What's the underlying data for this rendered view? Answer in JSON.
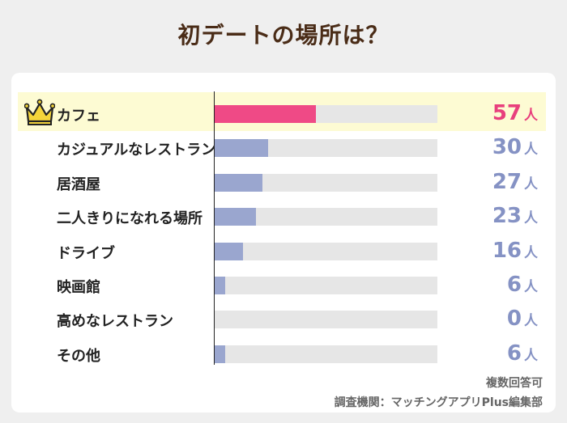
{
  "title": "初デートの場所は？",
  "unit": "人",
  "note_multiple": "複数回答可",
  "note_source": "調査機関：マッチングアプリPlus編集部",
  "crown_icon": "crown-icon",
  "colors": {
    "highlight_bar": "#ef4a86",
    "bar": "#9aa6cf",
    "highlight_value": "#e8407d",
    "value": "#8592c4",
    "track": "#e6e6e6",
    "highlight_row": "#fdfbd3"
  },
  "chart_data": {
    "type": "bar",
    "orientation": "horizontal",
    "title": "初デートの場所は？",
    "categories": [
      "カフェ",
      "カジュアルなレストラン",
      "居酒屋",
      "二人きりになれる場所",
      "ドライブ",
      "映画館",
      "高めなレストラン",
      "その他"
    ],
    "values": [
      57,
      30,
      27,
      23,
      16,
      6,
      0,
      6
    ],
    "xlim": [
      0,
      125
    ],
    "highlight_index": 0,
    "grid": false
  }
}
